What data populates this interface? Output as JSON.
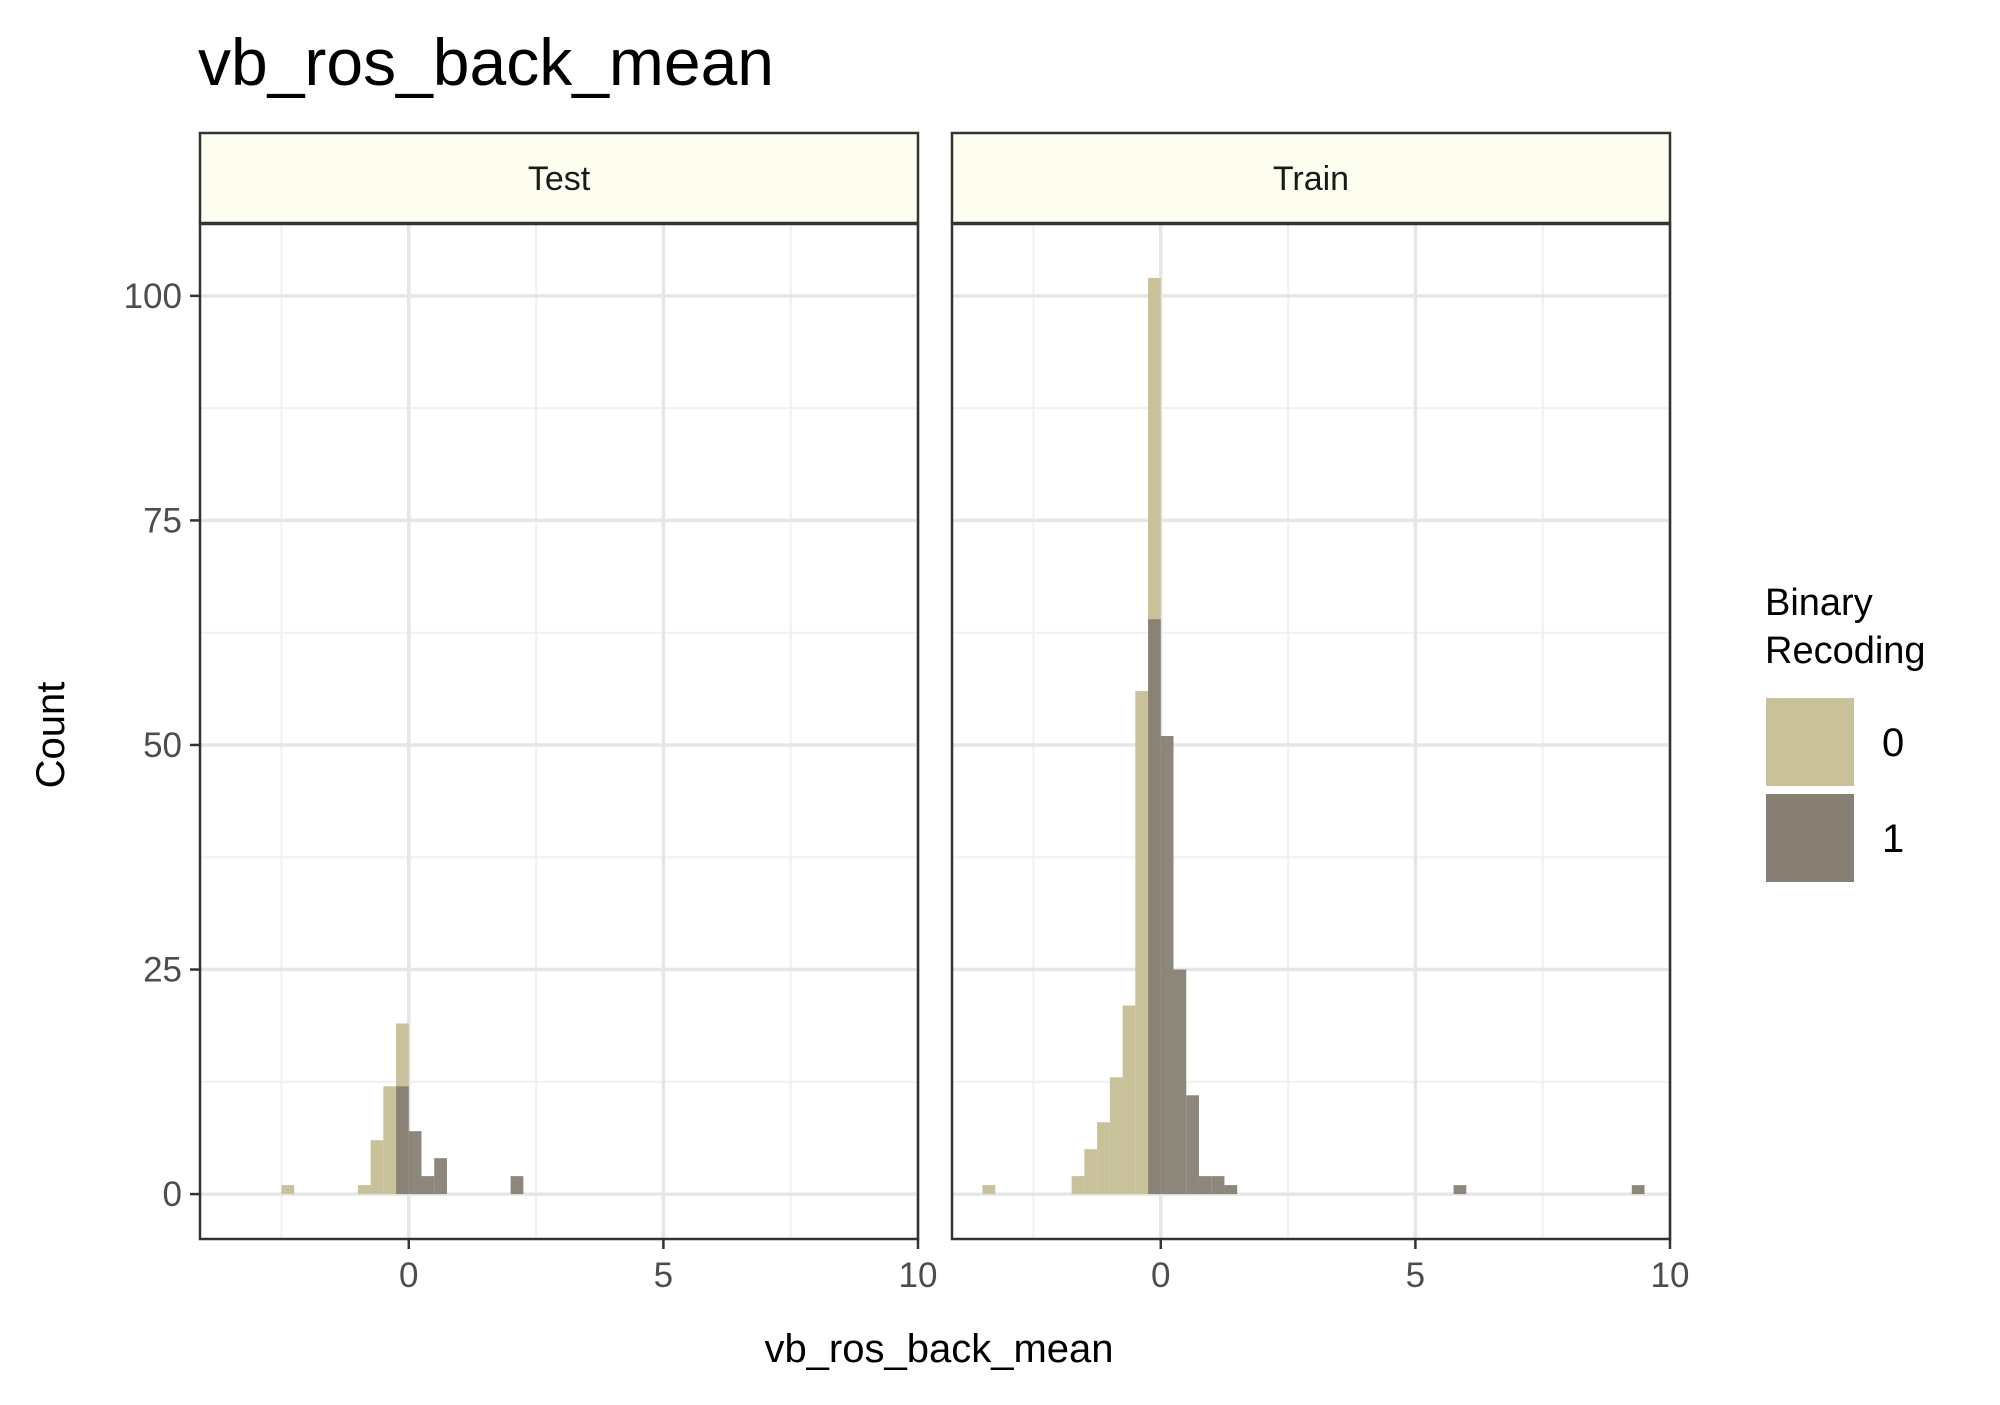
{
  "chart_data": {
    "type": "bar",
    "subtype": "faceted-histogram",
    "title": "vb_ros_back_mean",
    "xlabel": "vb_ros_back_mean",
    "ylabel": "Count",
    "xlim": [
      -4.1,
      10
    ],
    "ylim": [
      -5,
      108
    ],
    "xticks": [
      0,
      5,
      10
    ],
    "yticks": [
      0,
      25,
      50,
      75,
      100
    ],
    "grid": true,
    "bin_width": 0.25,
    "legend": {
      "title_lines": [
        "Binary",
        "Recoding"
      ],
      "position": "right",
      "entries": [
        {
          "label": "0",
          "color": "#c8c19a"
        },
        {
          "label": "1",
          "color": "#877f73"
        }
      ]
    },
    "series_colors": {
      "0": "#c8c19a",
      "1": "#877f73"
    },
    "facets": [
      {
        "name": "Test",
        "series": [
          {
            "key": "0",
            "bins": [
              [
                -2.375,
                1
              ],
              [
                -0.875,
                1
              ],
              [
                -0.625,
                6
              ],
              [
                -0.375,
                12
              ],
              [
                -0.125,
                19
              ]
            ]
          },
          {
            "key": "1",
            "bins": [
              [
                -0.125,
                12
              ],
              [
                0.125,
                7
              ],
              [
                0.375,
                2
              ],
              [
                0.625,
                4
              ],
              [
                2.125,
                2
              ]
            ]
          }
        ]
      },
      {
        "name": "Train",
        "series": [
          {
            "key": "0",
            "bins": [
              [
                -3.375,
                1
              ],
              [
                -1.625,
                2
              ],
              [
                -1.375,
                5
              ],
              [
                -1.125,
                8
              ],
              [
                -0.875,
                13
              ],
              [
                -0.625,
                21
              ],
              [
                -0.375,
                56
              ],
              [
                -0.125,
                102
              ]
            ]
          },
          {
            "key": "1",
            "bins": [
              [
                -0.125,
                64
              ],
              [
                0.125,
                51
              ],
              [
                0.375,
                25
              ],
              [
                0.625,
                11
              ],
              [
                0.875,
                2
              ],
              [
                1.125,
                2
              ],
              [
                1.375,
                1
              ],
              [
                5.875,
                1
              ],
              [
                9.375,
                1
              ]
            ]
          }
        ]
      }
    ]
  }
}
